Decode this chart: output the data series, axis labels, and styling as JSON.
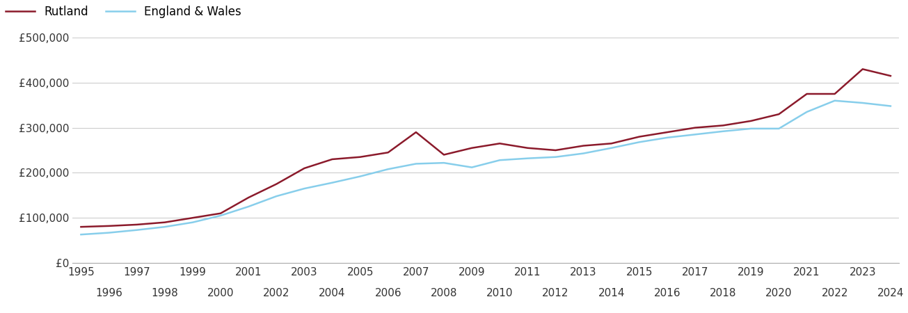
{
  "years": [
    1995,
    1996,
    1997,
    1998,
    1999,
    2000,
    2001,
    2002,
    2003,
    2004,
    2005,
    2006,
    2007,
    2008,
    2009,
    2010,
    2011,
    2012,
    2013,
    2014,
    2015,
    2016,
    2017,
    2018,
    2019,
    2020,
    2021,
    2022,
    2023,
    2024
  ],
  "rutland": [
    80000,
    82000,
    85000,
    90000,
    100000,
    110000,
    145000,
    175000,
    210000,
    230000,
    235000,
    245000,
    290000,
    240000,
    255000,
    265000,
    255000,
    250000,
    260000,
    265000,
    280000,
    290000,
    300000,
    305000,
    315000,
    330000,
    375000,
    375000,
    430000,
    415000
  ],
  "england_wales": [
    63000,
    67000,
    73000,
    80000,
    90000,
    105000,
    125000,
    148000,
    165000,
    178000,
    192000,
    208000,
    220000,
    222000,
    212000,
    228000,
    232000,
    235000,
    243000,
    255000,
    268000,
    278000,
    285000,
    292000,
    298000,
    298000,
    335000,
    360000,
    355000,
    348000
  ],
  "rutland_color": "#8B1A2B",
  "ew_color": "#87CEEB",
  "ylim": [
    0,
    500000
  ],
  "yticks": [
    0,
    100000,
    200000,
    300000,
    400000,
    500000
  ],
  "ytick_labels": [
    "£0",
    "£100,000",
    "£200,000",
    "£300,000",
    "£400,000",
    "£500,000"
  ],
  "legend_rutland": "Rutland",
  "legend_ew": "England & Wales",
  "background_color": "#ffffff",
  "grid_color": "#cccccc",
  "line_width": 1.8,
  "font_size_ticks": 11,
  "font_size_legend": 12
}
